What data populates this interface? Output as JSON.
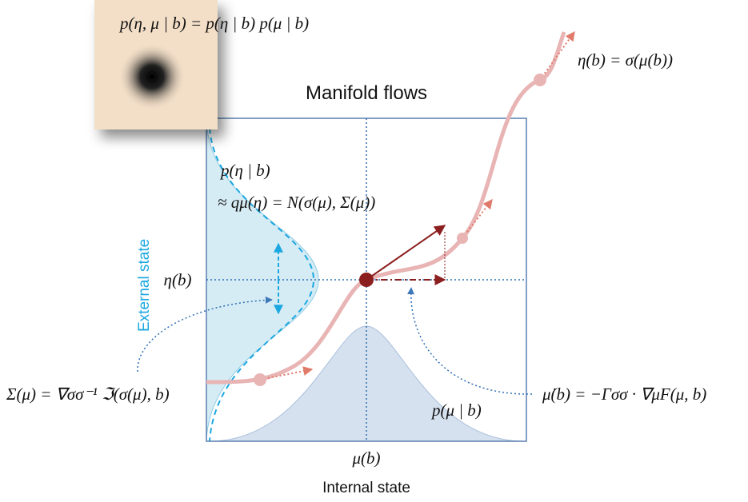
{
  "title": "Manifold flows",
  "joint": "p(η, μ | b) = p(η | b) p(μ | b)",
  "mapping": "η(b) = σ(μ(b))",
  "posterior": "p(η | b)",
  "approx": "≈ qμ(η) = N(σ(μ), Σ(μ))",
  "external_label": "External state",
  "eta": "η(b)",
  "sigma": "Σ(μ) = ∇σσ⁻¹ ℑ(σ(μ), b)",
  "flow": "μ̇(b) = −Γσσ · ∇μF(μ, b)",
  "prior_mu": "p(μ | b)",
  "mu": "μ(b)",
  "internal_label": "Internal state"
}
